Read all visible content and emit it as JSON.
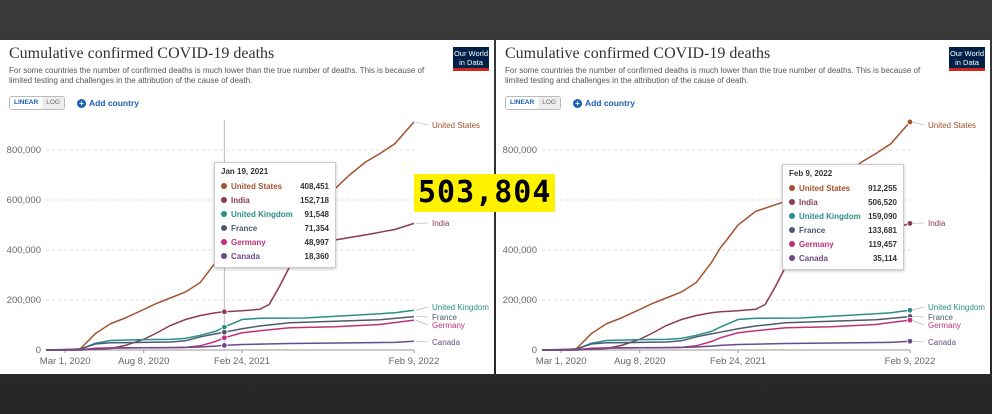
{
  "chart_title": "Cumulative confirmed COVID-19 deaths",
  "subtitle": "For some countries the number of confirmed deaths is much lower than the true number of deaths. This is because of limited testing and challenges in the attribution of the cause of death.",
  "logo": "Our World in Data",
  "toggle": {
    "linear": "LINEAR",
    "log": "LOG"
  },
  "add_country": "Add country",
  "overlay_number": "503,804",
  "colors": {
    "United States": "#a2522e",
    "India": "#8c3c4a",
    "United Kingdom": "#2a8f86",
    "France": "#4c5a70",
    "Germany": "#c0307a",
    "Canada": "#6b4a8a"
  },
  "chart_data": {
    "type": "line",
    "title": "Cumulative confirmed COVID-19 deaths",
    "x_ticks": [
      "Mar 1, 2020",
      "Aug 8, 2020",
      "Feb 24, 2021",
      "Feb 9, 2022"
    ],
    "y_ticks": [
      "0",
      "200,000",
      "400,000",
      "600,000",
      "800,000"
    ],
    "ylim": [
      0,
      900000
    ],
    "xlim": [
      "2020-01-22",
      "2022-02-09"
    ],
    "grid": true,
    "series": [
      {
        "name": "United States",
        "points": [
          [
            "2020-01-22",
            0
          ],
          [
            "2020-03-01",
            0
          ],
          [
            "2020-04-01",
            5000
          ],
          [
            "2020-05-01",
            65000
          ],
          [
            "2020-06-01",
            105000
          ],
          [
            "2020-07-01",
            128000
          ],
          [
            "2020-08-08",
            162000
          ],
          [
            "2020-09-01",
            185000
          ],
          [
            "2020-10-01",
            208000
          ],
          [
            "2020-11-01",
            232000
          ],
          [
            "2020-12-01",
            270000
          ],
          [
            "2021-01-01",
            350000
          ],
          [
            "2021-01-19",
            408451
          ],
          [
            "2021-02-01",
            440000
          ],
          [
            "2021-02-24",
            500000
          ],
          [
            "2021-04-01",
            555000
          ],
          [
            "2021-06-01",
            595000
          ],
          [
            "2021-08-01",
            615000
          ],
          [
            "2021-09-01",
            645000
          ],
          [
            "2021-10-01",
            700000
          ],
          [
            "2021-11-01",
            750000
          ],
          [
            "2021-12-01",
            785000
          ],
          [
            "2022-01-01",
            825000
          ],
          [
            "2022-02-09",
            912255
          ]
        ]
      },
      {
        "name": "India",
        "points": [
          [
            "2020-01-22",
            0
          ],
          [
            "2020-04-01",
            100
          ],
          [
            "2020-06-01",
            6000
          ],
          [
            "2020-07-01",
            18000
          ],
          [
            "2020-08-08",
            43000
          ],
          [
            "2020-09-01",
            66000
          ],
          [
            "2020-10-01",
            98000
          ],
          [
            "2020-11-01",
            122000
          ],
          [
            "2020-12-01",
            138000
          ],
          [
            "2021-01-01",
            149000
          ],
          [
            "2021-01-19",
            152718
          ],
          [
            "2021-02-24",
            157000
          ],
          [
            "2021-04-01",
            163000
          ],
          [
            "2021-04-20",
            182000
          ],
          [
            "2021-05-10",
            250000
          ],
          [
            "2021-05-31",
            330000
          ],
          [
            "2021-06-20",
            390000
          ],
          [
            "2021-07-15",
            415000
          ],
          [
            "2021-09-01",
            440000
          ],
          [
            "2021-11-01",
            460000
          ],
          [
            "2022-01-01",
            482000
          ],
          [
            "2022-02-09",
            506520
          ]
        ]
      },
      {
        "name": "United Kingdom",
        "points": [
          [
            "2020-01-22",
            0
          ],
          [
            "2020-03-01",
            0
          ],
          [
            "2020-04-01",
            3000
          ],
          [
            "2020-05-01",
            27000
          ],
          [
            "2020-06-01",
            38000
          ],
          [
            "2020-08-08",
            41500
          ],
          [
            "2020-10-01",
            42500
          ],
          [
            "2020-11-01",
            46500
          ],
          [
            "2020-12-01",
            59000
          ],
          [
            "2021-01-01",
            74500
          ],
          [
            "2021-01-19",
            91548
          ],
          [
            "2021-02-24",
            122000
          ],
          [
            "2021-04-01",
            127000
          ],
          [
            "2021-07-01",
            128000
          ],
          [
            "2021-10-01",
            138000
          ],
          [
            "2022-01-01",
            149000
          ],
          [
            "2022-02-09",
            159090
          ]
        ]
      },
      {
        "name": "France",
        "points": [
          [
            "2020-01-22",
            0
          ],
          [
            "2020-04-01",
            4000
          ],
          [
            "2020-05-01",
            24000
          ],
          [
            "2020-06-01",
            29000
          ],
          [
            "2020-08-08",
            30300
          ],
          [
            "2020-10-01",
            32000
          ],
          [
            "2020-11-01",
            37000
          ],
          [
            "2020-12-01",
            53000
          ],
          [
            "2021-01-01",
            64500
          ],
          [
            "2021-01-19",
            71354
          ],
          [
            "2021-02-24",
            85000
          ],
          [
            "2021-04-01",
            96000
          ],
          [
            "2021-06-01",
            109000
          ],
          [
            "2021-09-01",
            115000
          ],
          [
            "2021-12-01",
            121000
          ],
          [
            "2022-02-09",
            133681
          ]
        ]
      },
      {
        "name": "Germany",
        "points": [
          [
            "2020-01-22",
            0
          ],
          [
            "2020-04-01",
            900
          ],
          [
            "2020-05-01",
            6700
          ],
          [
            "2020-06-01",
            8600
          ],
          [
            "2020-08-08",
            9200
          ],
          [
            "2020-10-01",
            9500
          ],
          [
            "2020-11-01",
            10500
          ],
          [
            "2020-12-01",
            17000
          ],
          [
            "2021-01-01",
            34000
          ],
          [
            "2021-01-19",
            48997
          ],
          [
            "2021-02-24",
            69000
          ],
          [
            "2021-04-01",
            77000
          ],
          [
            "2021-06-01",
            89000
          ],
          [
            "2021-09-01",
            93000
          ],
          [
            "2021-12-01",
            102000
          ],
          [
            "2022-02-09",
            119457
          ]
        ]
      },
      {
        "name": "Canada",
        "points": [
          [
            "2020-01-22",
            0
          ],
          [
            "2020-04-01",
            100
          ],
          [
            "2020-05-01",
            3500
          ],
          [
            "2020-06-01",
            7400
          ],
          [
            "2020-08-08",
            9000
          ],
          [
            "2020-10-01",
            9500
          ],
          [
            "2020-11-01",
            10200
          ],
          [
            "2020-12-01",
            12000
          ],
          [
            "2021-01-01",
            15600
          ],
          [
            "2021-01-19",
            18360
          ],
          [
            "2021-02-24",
            21900
          ],
          [
            "2021-06-01",
            26000
          ],
          [
            "2021-10-01",
            28500
          ],
          [
            "2022-01-01",
            30500
          ],
          [
            "2022-02-09",
            35114
          ]
        ]
      }
    ]
  },
  "left_panel": {
    "hover_date": "2021-01-19",
    "tooltip_date": "Jan 19, 2021",
    "tooltip_rows": [
      {
        "name": "United States",
        "value": "408,451"
      },
      {
        "name": "India",
        "value": "152,718"
      },
      {
        "name": "United Kingdom",
        "value": "91,548"
      },
      {
        "name": "France",
        "value": "71,354"
      },
      {
        "name": "Germany",
        "value": "48,997"
      },
      {
        "name": "Canada",
        "value": "18,360"
      }
    ]
  },
  "right_panel": {
    "hover_date": "2022-02-09",
    "tooltip_date": "Feb 9, 2022",
    "tooltip_rows": [
      {
        "name": "United States",
        "value": "912,255"
      },
      {
        "name": "India",
        "value": "506,520"
      },
      {
        "name": "United Kingdom",
        "value": "159,090"
      },
      {
        "name": "France",
        "value": "133,681"
      },
      {
        "name": "Germany",
        "value": "119,457"
      },
      {
        "name": "Canada",
        "value": "35,114"
      }
    ]
  }
}
